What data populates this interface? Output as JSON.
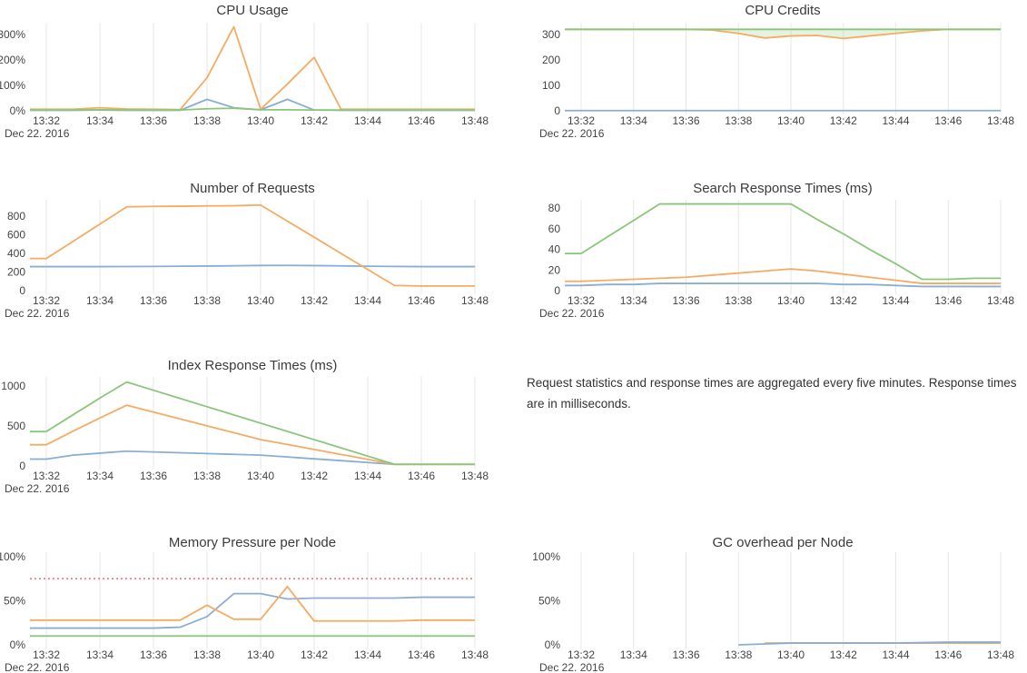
{
  "page": {
    "background": "#ffffff"
  },
  "palette": {
    "blue": "#8aaed2",
    "orange": "#f6ab62",
    "green": "#8ac679",
    "red": "#ee8d8d",
    "grid": "#e7e7e7",
    "tick_text": "#444444",
    "title_text": "#3b3b3b",
    "fill_green": "rgba(138,198,121,0.22)"
  },
  "x_axis": {
    "times": [
      "13:32",
      "13:33",
      "13:34",
      "13:35",
      "13:36",
      "13:37",
      "13:38",
      "13:39",
      "13:40",
      "13:41",
      "13:42",
      "13:43",
      "13:44",
      "13:45",
      "13:46",
      "13:47",
      "13:48"
    ],
    "tick_labels": [
      "13:32",
      "13:34",
      "13:36",
      "13:38",
      "13:40",
      "13:42",
      "13:44",
      "13:46",
      "13:48"
    ],
    "tick_indices": [
      0,
      2,
      4,
      6,
      8,
      10,
      12,
      14,
      16
    ],
    "date_label": "Dec 22. 2016"
  },
  "note": {
    "text": "Request statistics and response times are aggregated every five minutes. Response times are in milliseconds."
  },
  "chart_data": [
    {
      "id": "cpu_usage",
      "type": "line",
      "title": "CPU Usage",
      "ylim": [
        0,
        346
      ],
      "grid": "vertical",
      "legend": "none",
      "yticks": [
        {
          "v": 0,
          "label": "0%"
        },
        {
          "v": 100,
          "label": "100%"
        },
        {
          "v": 200,
          "label": "200%"
        },
        {
          "v": 300,
          "label": "300%"
        }
      ],
      "series": [
        {
          "name": "blue",
          "color_key": "blue",
          "values": [
            2,
            2,
            3,
            2,
            2,
            2,
            45,
            12,
            4,
            45,
            3,
            2,
            2,
            2,
            2,
            2,
            2
          ]
        },
        {
          "name": "orange",
          "color_key": "orange",
          "values": [
            6,
            6,
            12,
            7,
            6,
            5,
            130,
            330,
            6,
            105,
            210,
            6,
            6,
            6,
            6,
            6,
            6
          ]
        },
        {
          "name": "green",
          "color_key": "green",
          "values": [
            3,
            3,
            4,
            3,
            3,
            3,
            8,
            10,
            4,
            4,
            3,
            3,
            3,
            3,
            3,
            3,
            3
          ]
        }
      ]
    },
    {
      "id": "cpu_credits",
      "type": "line",
      "title": "CPU Credits",
      "ylim": [
        0,
        346
      ],
      "grid": "vertical",
      "legend": "none",
      "yticks": [
        {
          "v": 0,
          "label": "0"
        },
        {
          "v": 100,
          "label": "100"
        },
        {
          "v": 200,
          "label": "200"
        },
        {
          "v": 300,
          "label": "300"
        }
      ],
      "fill_between": {
        "upper": "green",
        "lower": "orange",
        "color_key": "fill_green"
      },
      "series": [
        {
          "name": "blue",
          "color_key": "blue",
          "values": [
            1,
            1,
            1,
            1,
            1,
            1,
            1,
            1,
            1,
            1,
            1,
            1,
            1,
            1,
            1,
            1,
            1
          ]
        },
        {
          "name": "orange",
          "color_key": "orange",
          "values": [
            320,
            320,
            320,
            320,
            320,
            317,
            304,
            286,
            294,
            296,
            284,
            294,
            304,
            314,
            320,
            320,
            320
          ]
        },
        {
          "name": "green",
          "color_key": "green",
          "values": [
            320,
            320,
            320,
            320,
            320,
            320,
            320,
            320,
            320,
            320,
            320,
            320,
            320,
            320,
            320,
            320,
            320
          ]
        }
      ]
    },
    {
      "id": "number_of_requests",
      "type": "line",
      "title": "Number of Requests",
      "ylim": [
        0,
        976
      ],
      "grid": "vertical",
      "legend": "none",
      "yticks": [
        {
          "v": 0,
          "label": "0"
        },
        {
          "v": 200,
          "label": "200"
        },
        {
          "v": 400,
          "label": "400"
        },
        {
          "v": 600,
          "label": "600"
        },
        {
          "v": 800,
          "label": "800"
        }
      ],
      "series": [
        {
          "name": "blue",
          "color_key": "blue",
          "values": [
            258,
            258,
            258,
            259,
            260,
            262,
            264,
            267,
            270,
            271,
            269,
            266,
            262,
            260,
            258,
            258,
            258
          ]
        },
        {
          "name": "orange",
          "color_key": "orange",
          "values": [
            345,
            530,
            715,
            900,
            905,
            907,
            910,
            912,
            920,
            747,
            574,
            400,
            227,
            55,
            50,
            50,
            50
          ]
        }
      ]
    },
    {
      "id": "search_response_times",
      "type": "line",
      "title": "Search Response Times (ms)",
      "ylim": [
        0,
        88
      ],
      "grid": "vertical",
      "legend": "none",
      "yticks": [
        {
          "v": 0,
          "label": "0"
        },
        {
          "v": 20,
          "label": "20"
        },
        {
          "v": 40,
          "label": "40"
        },
        {
          "v": 60,
          "label": "60"
        },
        {
          "v": 80,
          "label": "80"
        }
      ],
      "series": [
        {
          "name": "blue",
          "color_key": "blue",
          "values": [
            5,
            6,
            6,
            7,
            7,
            7,
            7,
            7,
            7,
            7,
            6,
            6,
            5,
            4,
            4,
            4,
            4
          ]
        },
        {
          "name": "orange",
          "color_key": "orange",
          "values": [
            9,
            10,
            11,
            12,
            13,
            15,
            17,
            19,
            21,
            19,
            16,
            13,
            10,
            7,
            7,
            7,
            7
          ]
        },
        {
          "name": "green",
          "color_key": "green",
          "values": [
            36,
            52,
            68,
            84,
            84,
            84,
            84,
            84,
            84,
            69,
            55,
            40,
            26,
            11,
            11,
            12,
            12
          ]
        }
      ]
    },
    {
      "id": "index_response_times",
      "type": "line",
      "title": "Index Response Times (ms)",
      "ylim": [
        0,
        1114
      ],
      "grid": "vertical",
      "legend": "none",
      "yticks": [
        {
          "v": 0,
          "label": "0"
        },
        {
          "v": 500,
          "label": "500"
        },
        {
          "v": 1000,
          "label": "1000"
        }
      ],
      "series": [
        {
          "name": "blue",
          "color_key": "blue",
          "values": [
            85,
            135,
            160,
            185,
            175,
            165,
            155,
            145,
            135,
            112,
            89,
            66,
            43,
            20,
            20,
            20,
            20
          ]
        },
        {
          "name": "orange",
          "color_key": "orange",
          "values": [
            265,
            435,
            600,
            760,
            674,
            588,
            502,
            416,
            330,
            268,
            206,
            144,
            82,
            20,
            20,
            20,
            20
          ]
        },
        {
          "name": "green",
          "color_key": "green",
          "values": [
            430,
            640,
            850,
            1050,
            947,
            844,
            741,
            638,
            535,
            432,
            329,
            226,
            123,
            20,
            20,
            20,
            20
          ]
        }
      ]
    },
    {
      "id": "memory_pressure",
      "type": "line",
      "title": "Memory Pressure per Node",
      "ylim": [
        0,
        105
      ],
      "grid": "vertical",
      "legend": "none",
      "yticks": [
        {
          "v": 0,
          "label": "0%"
        },
        {
          "v": 50,
          "label": "50%"
        },
        {
          "v": 100,
          "label": "100%"
        }
      ],
      "series": [
        {
          "name": "threshold",
          "color_key": "red",
          "dash": "2,3",
          "width": 2,
          "values": [
            75,
            75,
            75,
            75,
            75,
            75,
            75,
            75,
            75,
            75,
            75,
            75,
            75,
            75,
            75,
            75,
            75
          ]
        },
        {
          "name": "green",
          "color_key": "green",
          "values": [
            10,
            10,
            10,
            10,
            10,
            10,
            10,
            10,
            10,
            10,
            10,
            10,
            10,
            10,
            10,
            10,
            10
          ]
        },
        {
          "name": "blue",
          "color_key": "blue",
          "values": [
            19,
            19,
            19,
            19,
            19,
            20,
            32,
            58,
            58,
            52,
            53,
            53,
            53,
            53,
            54,
            54,
            54
          ]
        },
        {
          "name": "orange",
          "color_key": "orange",
          "values": [
            28,
            28,
            28,
            28,
            28,
            28,
            45,
            29,
            29,
            66,
            27,
            27,
            27,
            27,
            28,
            28,
            28
          ]
        }
      ]
    },
    {
      "id": "gc_overhead",
      "type": "line",
      "title": "GC overhead per Node",
      "ylim": [
        0,
        105
      ],
      "grid": "vertical",
      "legend": "none",
      "yticks": [
        {
          "v": 0,
          "label": "0%"
        },
        {
          "v": 50,
          "label": "50%"
        },
        {
          "v": 100,
          "label": "100%"
        }
      ],
      "series": [
        {
          "name": "orange",
          "color_key": "orange",
          "values": [
            null,
            null,
            null,
            null,
            null,
            null,
            null,
            2,
            2,
            2,
            2,
            2,
            2,
            2,
            2,
            2,
            2
          ]
        },
        {
          "name": "blue",
          "color_key": "blue",
          "values": [
            null,
            null,
            null,
            null,
            null,
            null,
            0,
            1,
            2,
            2,
            2,
            2,
            2,
            2.5,
            3,
            3,
            3
          ]
        }
      ]
    }
  ]
}
